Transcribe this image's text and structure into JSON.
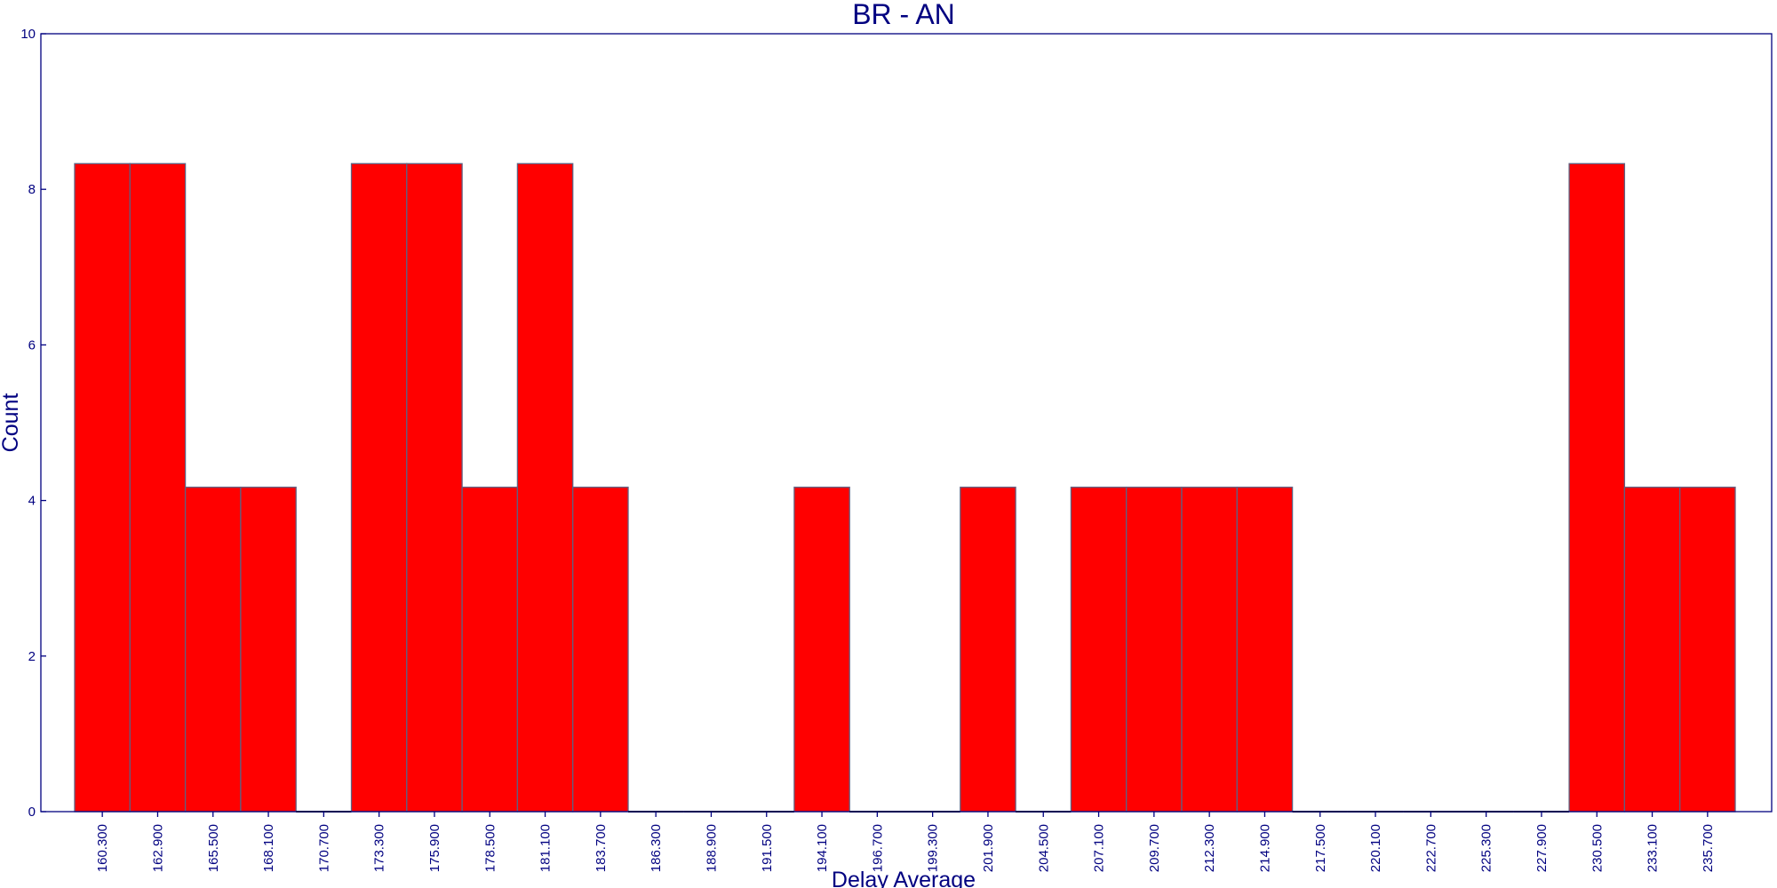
{
  "chart_data": {
    "type": "bar",
    "title": "BR - AN",
    "xlabel": "Delay Average",
    "ylabel": "Count",
    "ylim": [
      0,
      10
    ],
    "yticks": [
      "0",
      "2",
      "4",
      "6",
      "8",
      "10"
    ],
    "categories": [
      "160.300",
      "162.900",
      "165.500",
      "168.100",
      "170.700",
      "173.300",
      "175.900",
      "178.500",
      "181.100",
      "183.700",
      "186.300",
      "188.900",
      "191.500",
      "194.100",
      "196.700",
      "199.300",
      "201.900",
      "204.500",
      "207.100",
      "209.700",
      "212.300",
      "214.900",
      "217.500",
      "220.100",
      "222.700",
      "225.300",
      "227.900",
      "230.500",
      "233.100",
      "235.700"
    ],
    "values": [
      8.33,
      8.33,
      4.17,
      4.17,
      0,
      8.33,
      8.33,
      4.17,
      8.33,
      4.17,
      0,
      0,
      0,
      4.17,
      0,
      0,
      4.17,
      0,
      4.17,
      4.17,
      4.17,
      4.17,
      0,
      0,
      0,
      0,
      0,
      8.33,
      4.17,
      4.17
    ],
    "grid": false,
    "legend": "none",
    "colors": {
      "bar_fill": "#ff0000",
      "bar_edge": "#606080",
      "axis": "#000080",
      "text": "#000080",
      "background": "#ffffff"
    }
  }
}
